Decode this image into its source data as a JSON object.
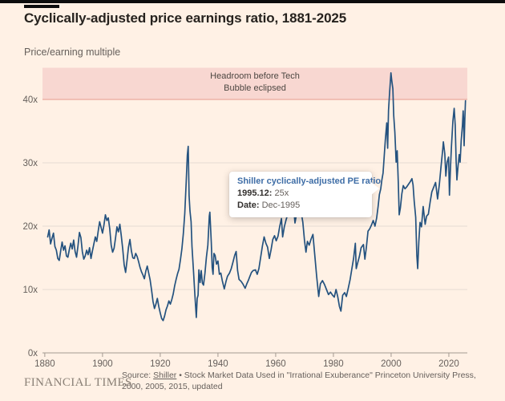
{
  "header": {
    "title": "Cyclically-adjusted price earnings ratio, 1881-2025",
    "subtitle": "Price/earning multiple"
  },
  "annotation_band": {
    "line1": "Headroom before Tech",
    "line2": "Bubble eclipsed",
    "value_from": 40,
    "value_to": 45,
    "fill_color": "#f8d7d1",
    "edge_color": "#e9a99e"
  },
  "tooltip": {
    "title": "Shiller cyclically-adjusted PE ratio",
    "row1_label": "1995.12:",
    "row1_value": "25x",
    "row2_label": "Date:",
    "row2_value": "Dec-1995"
  },
  "footer": {
    "brand": "FINANCIAL TIMES",
    "source_prefix": "Source:",
    "source_link": "Shiller",
    "source_rest": " • Stock Market Data Used in \"Irrational Exuberance\" Princeton University Press, 2000, 2005, 2015, updated"
  },
  "chart_data": {
    "type": "line",
    "title": "Cyclically-adjusted price earnings ratio, 1881-2025",
    "xlabel": "",
    "ylabel": "Price/earning multiple",
    "xlim": [
      1879.2,
      2026.4
    ],
    "ylim": [
      0,
      45
    ],
    "x_ticks": [
      1880,
      1900,
      1920,
      1940,
      1960,
      1980,
      2000,
      2020
    ],
    "y_ticks": [
      0,
      10,
      20,
      30,
      40
    ],
    "y_tick_suffix": "x",
    "grid": true,
    "legend_position": "none",
    "line_color": "#24527f",
    "grid_color": "#e6dcd3",
    "axis_color": "#a39a91",
    "tick_label_color": "#66605c",
    "highlight_point": {
      "year": 1995.92,
      "value": 25,
      "label": "Dec-1995"
    },
    "series": [
      {
        "name": "Shiller cyclically-adjusted PE ratio",
        "points": [
          [
            1881,
            18.3
          ],
          [
            1881.5,
            19.4
          ],
          [
            1882,
            17.2
          ],
          [
            1882.5,
            18.1
          ],
          [
            1883,
            18.9
          ],
          [
            1883.5,
            16.8
          ],
          [
            1884,
            16.2
          ],
          [
            1884.5,
            14.9
          ],
          [
            1885,
            14.6
          ],
          [
            1885.5,
            16.1
          ],
          [
            1886,
            17.5
          ],
          [
            1886.5,
            16.2
          ],
          [
            1887,
            16.9
          ],
          [
            1887.5,
            15.3
          ],
          [
            1888,
            15.1
          ],
          [
            1888.5,
            16.3
          ],
          [
            1889,
            17.3
          ],
          [
            1889.5,
            16.4
          ],
          [
            1890,
            17.8
          ],
          [
            1890.5,
            16.0
          ],
          [
            1891,
            15.1
          ],
          [
            1891.5,
            16.9
          ],
          [
            1892,
            19.0
          ],
          [
            1892.5,
            18.2
          ],
          [
            1893,
            16.0
          ],
          [
            1893.5,
            14.8
          ],
          [
            1894,
            15.3
          ],
          [
            1894.5,
            16.2
          ],
          [
            1895,
            15.5
          ],
          [
            1895.5,
            16.6
          ],
          [
            1896,
            14.9
          ],
          [
            1896.5,
            16.1
          ],
          [
            1897,
            17.2
          ],
          [
            1897.5,
            18.3
          ],
          [
            1898,
            17.6
          ],
          [
            1898.5,
            19.2
          ],
          [
            1899,
            20.7
          ],
          [
            1899.5,
            19.8
          ],
          [
            1900,
            18.9
          ],
          [
            1900.5,
            20.2
          ],
          [
            1901,
            21.8
          ],
          [
            1901.5,
            20.9
          ],
          [
            1902,
            21.3
          ],
          [
            1902.5,
            19.6
          ],
          [
            1903,
            17.0
          ],
          [
            1903.5,
            15.9
          ],
          [
            1904,
            16.5
          ],
          [
            1904.5,
            18.1
          ],
          [
            1905,
            19.9
          ],
          [
            1905.5,
            19.1
          ],
          [
            1906,
            20.3
          ],
          [
            1906.5,
            18.5
          ],
          [
            1907,
            16.4
          ],
          [
            1907.5,
            13.9
          ],
          [
            1908,
            12.7
          ],
          [
            1908.5,
            14.6
          ],
          [
            1909,
            16.7
          ],
          [
            1909.5,
            17.9
          ],
          [
            1910,
            16.1
          ],
          [
            1910.5,
            15.0
          ],
          [
            1911,
            14.9
          ],
          [
            1911.5,
            15.7
          ],
          [
            1912,
            15.2
          ],
          [
            1912.5,
            14.4
          ],
          [
            1913,
            13.5
          ],
          [
            1913.5,
            12.8
          ],
          [
            1914,
            12.3
          ],
          [
            1914.5,
            11.7
          ],
          [
            1915,
            12.9
          ],
          [
            1915.5,
            13.7
          ],
          [
            1916,
            12.6
          ],
          [
            1916.5,
            11.5
          ],
          [
            1917,
            9.9
          ],
          [
            1917.5,
            8.1
          ],
          [
            1918,
            7.0
          ],
          [
            1918.5,
            7.7
          ],
          [
            1919,
            8.6
          ],
          [
            1919.5,
            7.3
          ],
          [
            1920,
            6.3
          ],
          [
            1920.5,
            5.4
          ],
          [
            1921,
            5.1
          ],
          [
            1921.5,
            5.8
          ],
          [
            1922,
            6.8
          ],
          [
            1922.5,
            7.4
          ],
          [
            1923,
            8.2
          ],
          [
            1923.5,
            7.7
          ],
          [
            1924,
            8.4
          ],
          [
            1924.5,
            9.3
          ],
          [
            1925,
            10.6
          ],
          [
            1925.5,
            11.6
          ],
          [
            1926,
            12.5
          ],
          [
            1926.5,
            13.2
          ],
          [
            1927,
            14.7
          ],
          [
            1927.5,
            16.4
          ],
          [
            1928,
            18.8
          ],
          [
            1928.5,
            22.0
          ],
          [
            1929,
            27.0
          ],
          [
            1929.4,
            31.2
          ],
          [
            1929.7,
            32.6
          ],
          [
            1930,
            24.8
          ],
          [
            1930.3,
            22.4
          ],
          [
            1930.7,
            20.7
          ],
          [
            1931,
            16.8
          ],
          [
            1931.5,
            13.1
          ],
          [
            1932,
            9.2
          ],
          [
            1932.5,
            5.6
          ],
          [
            1932.8,
            8.6
          ],
          [
            1933.1,
            9.1
          ],
          [
            1933.4,
            13.1
          ],
          [
            1933.8,
            11.1
          ],
          [
            1934.2,
            13.0
          ],
          [
            1934.6,
            11.0
          ],
          [
            1935,
            10.7
          ],
          [
            1935.5,
            12.6
          ],
          [
            1936,
            15.1
          ],
          [
            1936.5,
            17.0
          ],
          [
            1937,
            21.6
          ],
          [
            1937.2,
            22.2
          ],
          [
            1937.7,
            17.4
          ],
          [
            1938,
            13.5
          ],
          [
            1938.3,
            12.4
          ],
          [
            1938.6,
            15.7
          ],
          [
            1939,
            15.4
          ],
          [
            1939.5,
            14.0
          ],
          [
            1940,
            14.5
          ],
          [
            1940.5,
            12.4
          ],
          [
            1941,
            12.6
          ],
          [
            1941.5,
            11.4
          ],
          [
            1942.2,
            10.1
          ],
          [
            1942.8,
            11.3
          ],
          [
            1943.3,
            12.1
          ],
          [
            1944,
            12.6
          ],
          [
            1944.6,
            13.3
          ],
          [
            1945.2,
            14.3
          ],
          [
            1945.8,
            15.4
          ],
          [
            1946.3,
            16.0
          ],
          [
            1946.8,
            13.0
          ],
          [
            1947.3,
            11.6
          ],
          [
            1948,
            11.3
          ],
          [
            1948.6,
            10.9
          ],
          [
            1949.4,
            10.2
          ],
          [
            1950,
            10.9
          ],
          [
            1950.5,
            11.4
          ],
          [
            1951,
            12.0
          ],
          [
            1951.6,
            12.7
          ],
          [
            1952.2,
            13.0
          ],
          [
            1953,
            13.1
          ],
          [
            1953.6,
            12.4
          ],
          [
            1954.2,
            13.3
          ],
          [
            1954.8,
            15.1
          ],
          [
            1955.4,
            16.9
          ],
          [
            1956,
            18.3
          ],
          [
            1956.6,
            17.3
          ],
          [
            1957.2,
            16.7
          ],
          [
            1957.8,
            14.9
          ],
          [
            1958.4,
            16.3
          ],
          [
            1959,
            17.9
          ],
          [
            1959.6,
            18.5
          ],
          [
            1960.2,
            17.7
          ],
          [
            1960.8,
            18.4
          ],
          [
            1961.4,
            20.0
          ],
          [
            1962,
            21.2
          ],
          [
            1962.4,
            18.3
          ],
          [
            1963,
            19.9
          ],
          [
            1963.6,
            21.0
          ],
          [
            1964.2,
            21.9
          ],
          [
            1964.8,
            22.9
          ],
          [
            1965.4,
            23.5
          ],
          [
            1966,
            24.1
          ],
          [
            1966.7,
            20.5
          ],
          [
            1967.2,
            21.8
          ],
          [
            1967.8,
            22.1
          ],
          [
            1968.4,
            22.6
          ],
          [
            1968.9,
            22.0
          ],
          [
            1969.4,
            20.6
          ],
          [
            1970,
            17.7
          ],
          [
            1970.5,
            15.9
          ],
          [
            1971,
            17.6
          ],
          [
            1971.6,
            17.0
          ],
          [
            1972.2,
            17.9
          ],
          [
            1972.9,
            18.7
          ],
          [
            1973.5,
            15.7
          ],
          [
            1974.2,
            12.0
          ],
          [
            1974.9,
            8.9
          ],
          [
            1975.5,
            10.9
          ],
          [
            1976.2,
            11.4
          ],
          [
            1976.9,
            10.8
          ],
          [
            1977.6,
            10.0
          ],
          [
            1978.3,
            9.2
          ],
          [
            1979,
            9.6
          ],
          [
            1979.7,
            9.1
          ],
          [
            1980.3,
            8.8
          ],
          [
            1980.9,
            10.0
          ],
          [
            1981.5,
            8.9
          ],
          [
            1982.1,
            7.3
          ],
          [
            1982.6,
            6.6
          ],
          [
            1983.2,
            9.1
          ],
          [
            1983.9,
            9.5
          ],
          [
            1984.5,
            8.9
          ],
          [
            1985.1,
            10.1
          ],
          [
            1985.8,
            11.6
          ],
          [
            1986.4,
            13.3
          ],
          [
            1987,
            14.9
          ],
          [
            1987.6,
            17.3
          ],
          [
            1987.9,
            13.3
          ],
          [
            1988.4,
            14.2
          ],
          [
            1989,
            15.2
          ],
          [
            1989.6,
            16.6
          ],
          [
            1990.4,
            17.1
          ],
          [
            1990.9,
            14.8
          ],
          [
            1991.4,
            16.6
          ],
          [
            1992,
            19.2
          ],
          [
            1992.6,
            19.6
          ],
          [
            1993.2,
            20.2
          ],
          [
            1993.8,
            20.9
          ],
          [
            1994.4,
            20.0
          ],
          [
            1995,
            21.3
          ],
          [
            1995.5,
            23.1
          ],
          [
            1995.92,
            25.0
          ],
          [
            1996.4,
            25.9
          ],
          [
            1996.8,
            27.3
          ],
          [
            1997.2,
            28.4
          ],
          [
            1997.6,
            31.0
          ],
          [
            1998,
            33.6
          ],
          [
            1998.5,
            36.3
          ],
          [
            1998.8,
            32.3
          ],
          [
            1999.1,
            38.3
          ],
          [
            1999.5,
            41.2
          ],
          [
            1999.92,
            44.2
          ],
          [
            2000.2,
            43.0
          ],
          [
            2000.6,
            41.7
          ],
          [
            2000.9,
            37.4
          ],
          [
            2001.3,
            34.8
          ],
          [
            2001.75,
            30.1
          ],
          [
            2002.1,
            31.9
          ],
          [
            2002.5,
            26.8
          ],
          [
            2002.8,
            21.8
          ],
          [
            2003.2,
            22.9
          ],
          [
            2003.7,
            25.1
          ],
          [
            2004.2,
            26.4
          ],
          [
            2004.8,
            25.9
          ],
          [
            2005.4,
            26.2
          ],
          [
            2006,
            26.6
          ],
          [
            2006.6,
            27.0
          ],
          [
            2007.2,
            27.5
          ],
          [
            2007.6,
            26.5
          ],
          [
            2008,
            24.0
          ],
          [
            2008.5,
            21.4
          ],
          [
            2008.9,
            15.4
          ],
          [
            2009.2,
            13.3
          ],
          [
            2009.6,
            17.6
          ],
          [
            2010,
            20.6
          ],
          [
            2010.5,
            19.9
          ],
          [
            2011.1,
            23.1
          ],
          [
            2011.8,
            20.3
          ],
          [
            2012.3,
            21.6
          ],
          [
            2012.9,
            21.9
          ],
          [
            2013.5,
            23.8
          ],
          [
            2014.1,
            25.4
          ],
          [
            2014.8,
            26.2
          ],
          [
            2015.4,
            26.9
          ],
          [
            2016.1,
            24.3
          ],
          [
            2016.7,
            26.6
          ],
          [
            2017.3,
            29.4
          ],
          [
            2017.9,
            32.2
          ],
          [
            2018.1,
            33.3
          ],
          [
            2018.6,
            31.4
          ],
          [
            2018.97,
            27.9
          ],
          [
            2019.4,
            30.1
          ],
          [
            2019.9,
            30.9
          ],
          [
            2020.2,
            24.9
          ],
          [
            2020.6,
            29.6
          ],
          [
            2020.9,
            32.6
          ],
          [
            2021.4,
            36.6
          ],
          [
            2021.85,
            38.6
          ],
          [
            2022.2,
            35.9
          ],
          [
            2022.5,
            30.4
          ],
          [
            2022.78,
            27.3
          ],
          [
            2023.2,
            29.6
          ],
          [
            2023.6,
            31.3
          ],
          [
            2023.9,
            30.1
          ],
          [
            2024.3,
            33.6
          ],
          [
            2024.7,
            35.9
          ],
          [
            2024.95,
            38.2
          ],
          [
            2025.1,
            36.9
          ],
          [
            2025.3,
            32.7
          ],
          [
            2025.55,
            36.9
          ],
          [
            2025.75,
            39.8
          ]
        ]
      }
    ]
  }
}
